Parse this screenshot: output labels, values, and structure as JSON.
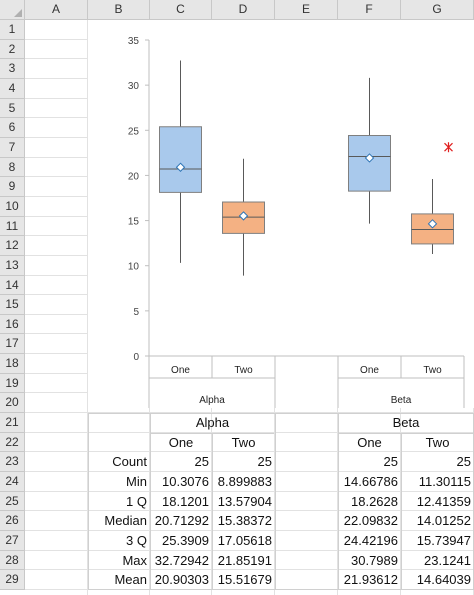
{
  "spreadsheet": {
    "columns": [
      "A",
      "B",
      "C",
      "D",
      "E",
      "F",
      "G"
    ],
    "rows": [
      "1",
      "2",
      "3",
      "4",
      "5",
      "6",
      "7",
      "8",
      "9",
      "10",
      "11",
      "12",
      "13",
      "14",
      "15",
      "16",
      "17",
      "18",
      "19",
      "20",
      "21",
      "22",
      "23",
      "24",
      "25",
      "26",
      "27",
      "28",
      "29"
    ]
  },
  "chart_data": {
    "type": "boxplot",
    "y_ticks": [
      "0",
      "5",
      "10",
      "15",
      "20",
      "25",
      "30",
      "35"
    ],
    "ylim": [
      0,
      35
    ],
    "groups": [
      {
        "name": "Alpha",
        "series": [
          {
            "name": "One",
            "min": 10.3076,
            "q1": 18.1201,
            "median": 20.71292,
            "q3": 25.3909,
            "max": 32.72942,
            "mean": 20.90303,
            "color": "#a9c9ec"
          },
          {
            "name": "Two",
            "min": 8.899883,
            "q1": 13.57904,
            "median": 15.38372,
            "q3": 17.05618,
            "max": 21.85191,
            "mean": 15.51679,
            "color": "#f4b183"
          }
        ]
      },
      {
        "name": "Beta",
        "series": [
          {
            "name": "One",
            "min": 14.66786,
            "q1": 18.2628,
            "median": 22.09832,
            "q3": 24.42196,
            "max": 30.7989,
            "mean": 21.93612,
            "color": "#a9c9ec"
          },
          {
            "name": "Two",
            "min": 11.30115,
            "q1": 12.41359,
            "median": 14.01252,
            "q3": 15.73947,
            "max": 19.6,
            "mean": 14.64039,
            "outlier": 23.1241,
            "color": "#f4b183"
          }
        ]
      }
    ],
    "outlier_color": "#e02020"
  },
  "table": {
    "group_headers": [
      "Alpha",
      "Beta"
    ],
    "sub_headers": [
      "One",
      "Two",
      "One",
      "Two"
    ],
    "rows": [
      {
        "label": "Count",
        "values": [
          "25",
          "25",
          "25",
          "25"
        ]
      },
      {
        "label": "Min",
        "values": [
          "10.3076",
          "8.899883",
          "14.66786",
          "11.30115"
        ]
      },
      {
        "label": "1 Q",
        "values": [
          "18.1201",
          "13.57904",
          "18.2628",
          "12.41359"
        ]
      },
      {
        "label": "Median",
        "values": [
          "20.71292",
          "15.38372",
          "22.09832",
          "14.01252"
        ]
      },
      {
        "label": "3 Q",
        "values": [
          "25.3909",
          "17.05618",
          "24.42196",
          "15.73947"
        ]
      },
      {
        "label": "Max",
        "values": [
          "32.72942",
          "21.85191",
          "30.7989",
          "23.1241"
        ]
      },
      {
        "label": "Mean",
        "values": [
          "20.90303",
          "15.51679",
          "21.93612",
          "14.64039"
        ]
      }
    ]
  }
}
